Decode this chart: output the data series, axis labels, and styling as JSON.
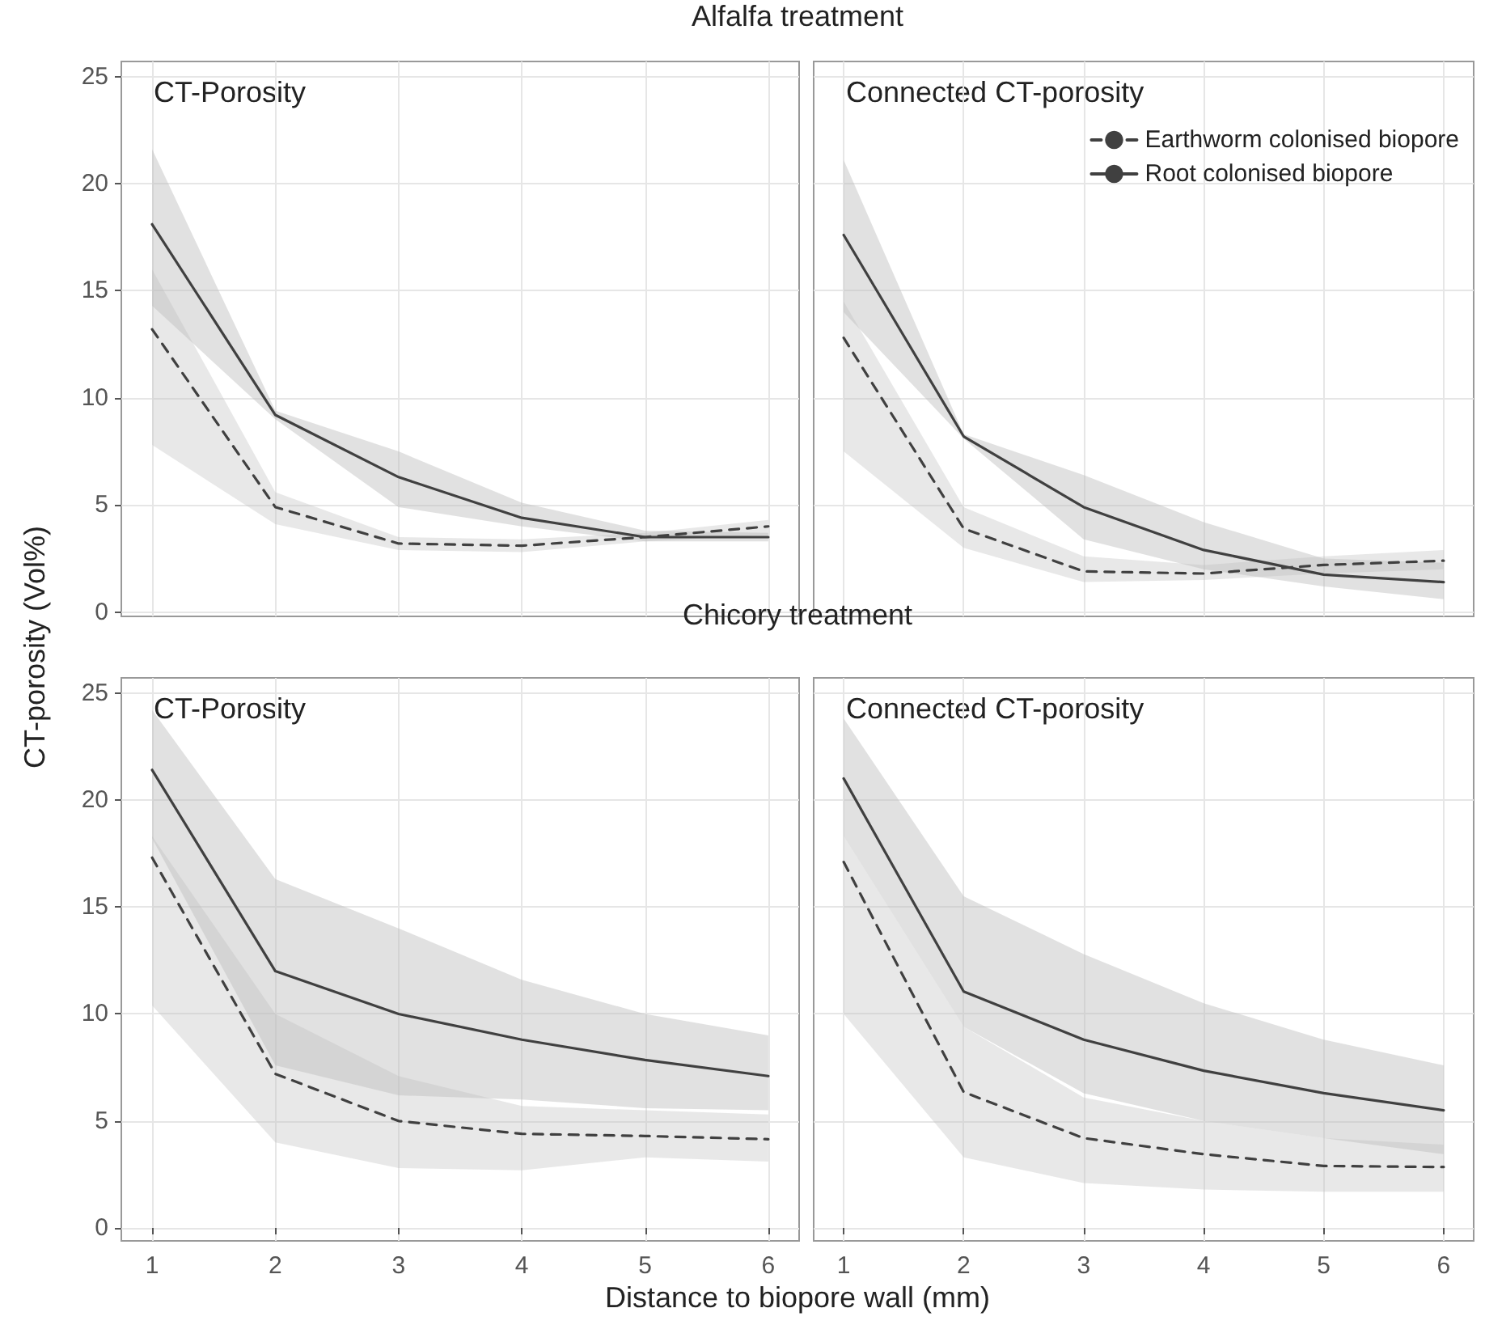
{
  "chart_data": [
    {
      "type": "line",
      "title": "Alfalfa treatment",
      "ylabel": "CT-porosity (Vol%)",
      "annotations": [
        "CT-Porosity"
      ],
      "x": [
        1,
        2,
        3,
        4,
        5,
        6
      ],
      "xlim": [
        0.75,
        6.25
      ],
      "xticks": [
        1,
        2,
        3,
        4,
        5,
        6
      ],
      "ylim": [
        -0.2,
        25.7
      ],
      "yticks": [
        0,
        5,
        10,
        15,
        20,
        25
      ],
      "grid": true,
      "tick_labels": "y",
      "marker": "none",
      "series": [
        {
          "color": "#404040",
          "line_style": "dashed",
          "values": [
            13.2,
            4.9,
            3.2,
            3.1,
            3.5,
            4.0
          ],
          "lower": [
            7.8,
            4.1,
            2.9,
            2.8,
            3.3,
            3.6
          ],
          "upper": [
            16.0,
            5.6,
            3.5,
            3.4,
            3.7,
            4.3
          ]
        },
        {
          "color": "#404040",
          "line_style": "solid",
          "values": [
            18.1,
            9.2,
            6.3,
            4.4,
            3.5,
            3.5
          ],
          "lower": [
            14.3,
            9.0,
            4.9,
            4.0,
            3.3,
            3.3
          ],
          "upper": [
            21.6,
            9.4,
            7.5,
            5.1,
            3.8,
            3.7
          ]
        }
      ]
    },
    {
      "type": "line",
      "annotations": [
        "Connected CT-porosity"
      ],
      "x": [
        1,
        2,
        3,
        4,
        5,
        6
      ],
      "xlim": [
        0.75,
        6.25
      ],
      "xticks": [
        1,
        2,
        3,
        4,
        5,
        6
      ],
      "ylim": [
        -0.2,
        25.7
      ],
      "yticks": [
        0,
        5,
        10,
        15,
        20,
        25
      ],
      "grid": true,
      "tick_labels": false,
      "legend": "top right",
      "marker": "none",
      "series": [
        {
          "name": "Earthworm colonised biopore",
          "color": "#404040",
          "line_style": "dashed",
          "values": [
            12.8,
            3.9,
            1.9,
            1.8,
            2.2,
            2.4
          ],
          "lower": [
            7.5,
            3.0,
            1.4,
            1.5,
            1.8,
            2.0
          ],
          "upper": [
            14.5,
            4.9,
            2.6,
            2.2,
            2.6,
            2.9
          ]
        },
        {
          "name": "Root colonised biopore",
          "color": "#404040",
          "line_style": "solid",
          "values": [
            17.6,
            8.2,
            4.9,
            2.9,
            1.75,
            1.4
          ],
          "lower": [
            14.0,
            8.1,
            3.4,
            2.0,
            1.2,
            0.6
          ],
          "upper": [
            21.1,
            8.3,
            6.4,
            4.2,
            2.5,
            2.3
          ]
        }
      ]
    },
    {
      "type": "line",
      "title": "Chicory treatment",
      "xlabel": "Distance to biopore wall (mm)",
      "annotations": [
        "CT-Porosity"
      ],
      "x": [
        1,
        2,
        3,
        4,
        5,
        6
      ],
      "xlim": [
        0.75,
        6.25
      ],
      "xticks": [
        1,
        2,
        3,
        4,
        5,
        6
      ],
      "ylim": [
        -0.6,
        25.7
      ],
      "yticks": [
        0,
        5,
        10,
        15,
        20,
        25
      ],
      "grid": true,
      "marker": "none",
      "series": [
        {
          "color": "#404040",
          "line_style": "dashed",
          "values": [
            17.3,
            7.2,
            5.0,
            4.4,
            4.3,
            4.15
          ],
          "lower": [
            10.4,
            4.0,
            2.8,
            2.7,
            3.3,
            3.1
          ],
          "upper": [
            18.3,
            10.0,
            7.1,
            5.7,
            5.5,
            5.3
          ]
        },
        {
          "color": "#404040",
          "line_style": "solid",
          "values": [
            21.4,
            12.0,
            10.0,
            8.8,
            7.85,
            7.1
          ],
          "lower": [
            18.2,
            7.6,
            6.2,
            6.0,
            5.6,
            5.5
          ],
          "upper": [
            24.2,
            16.3,
            14.0,
            11.6,
            10.0,
            9.0
          ]
        }
      ]
    },
    {
      "type": "line",
      "annotations": [
        "Connected CT-porosity"
      ],
      "x": [
        1,
        2,
        3,
        4,
        5,
        6
      ],
      "xlim": [
        0.75,
        6.25
      ],
      "xticks": [
        1,
        2,
        3,
        4,
        5,
        6
      ],
      "ylim": [
        -0.6,
        25.7
      ],
      "yticks": [
        0,
        5,
        10,
        15,
        20,
        25
      ],
      "grid": true,
      "tick_labels": "x",
      "marker": "none",
      "series": [
        {
          "color": "#404040",
          "line_style": "dashed",
          "values": [
            17.1,
            6.35,
            4.2,
            3.45,
            2.9,
            2.85
          ],
          "lower": [
            10.0,
            3.3,
            2.1,
            1.8,
            1.7,
            1.7
          ],
          "upper": [
            18.3,
            9.4,
            6.1,
            5.0,
            4.2,
            3.9
          ]
        },
        {
          "color": "#404040",
          "line_style": "solid",
          "values": [
            21.0,
            11.05,
            8.8,
            7.35,
            6.3,
            5.5
          ],
          "lower": [
            18.3,
            9.4,
            6.3,
            5.0,
            4.2,
            3.45
          ],
          "upper": [
            23.8,
            15.5,
            12.8,
            10.5,
            8.8,
            7.6
          ]
        }
      ]
    }
  ]
}
